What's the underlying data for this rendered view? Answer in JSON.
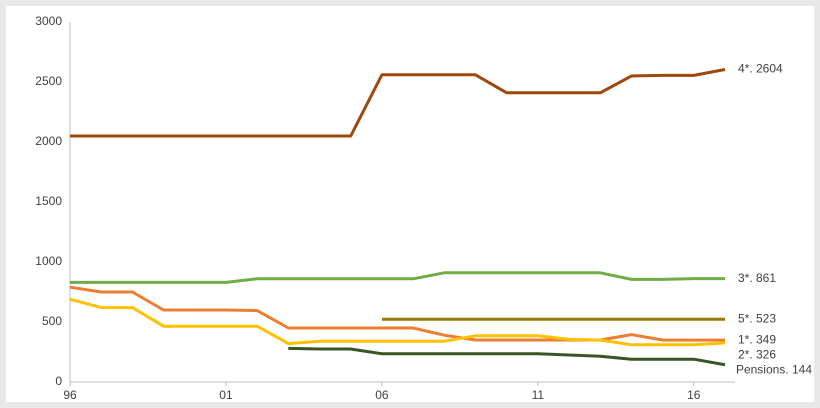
{
  "chart_data": {
    "type": "line",
    "x": [
      1996,
      1997,
      1998,
      1999,
      2000,
      2001,
      2002,
      2003,
      2004,
      2005,
      2006,
      2007,
      2008,
      2009,
      2010,
      2011,
      2012,
      2013,
      2014,
      2015,
      2016,
      2017
    ],
    "xlim": [
      1996,
      2017
    ],
    "xticks": [
      {
        "value": 1996,
        "label": "96"
      },
      {
        "value": 2001,
        "label": "01"
      },
      {
        "value": 2006,
        "label": "06"
      },
      {
        "value": 2011,
        "label": "11"
      },
      {
        "value": 2016,
        "label": "16"
      }
    ],
    "ylim": [
      0,
      3000
    ],
    "yticks": [
      0,
      500,
      1000,
      1500,
      2000,
      2500,
      3000
    ],
    "grid": false,
    "series": [
      {
        "name": "4*. 2604",
        "color": "#9e480e",
        "values": [
          2050,
          2050,
          2050,
          2050,
          2050,
          2050,
          2050,
          2050,
          2050,
          2050,
          2560,
          2560,
          2560,
          2560,
          2410,
          2410,
          2410,
          2410,
          2550,
          2555,
          2555,
          2604
        ]
      },
      {
        "name": "3*. 861",
        "color": "#70ad47",
        "values": [
          830,
          830,
          830,
          830,
          830,
          830,
          860,
          860,
          860,
          860,
          860,
          860,
          910,
          910,
          910,
          910,
          910,
          910,
          855,
          855,
          861,
          861
        ]
      },
      {
        "name": "5*. 523",
        "color": "#9c7a00",
        "values": [
          null,
          null,
          null,
          null,
          null,
          null,
          null,
          null,
          null,
          null,
          523,
          523,
          523,
          523,
          523,
          523,
          523,
          523,
          523,
          523,
          523,
          523
        ]
      },
      {
        "name": "1*. 349",
        "color": "#ed7d31",
        "values": [
          790,
          750,
          750,
          600,
          600,
          600,
          595,
          450,
          450,
          450,
          450,
          450,
          390,
          350,
          350,
          350,
          350,
          350,
          395,
          350,
          349,
          349
        ]
      },
      {
        "name": "2*. 326",
        "color": "#ffc000",
        "values": [
          690,
          620,
          620,
          465,
          465,
          465,
          465,
          320,
          340,
          340,
          340,
          340,
          340,
          385,
          385,
          385,
          355,
          350,
          310,
          310,
          310,
          326
        ]
      },
      {
        "name": "Pensions. 144",
        "color": "#375623",
        "values": [
          null,
          null,
          null,
          null,
          null,
          null,
          null,
          280,
          275,
          275,
          235,
          235,
          235,
          235,
          235,
          235,
          225,
          215,
          190,
          190,
          190,
          144
        ]
      }
    ]
  }
}
